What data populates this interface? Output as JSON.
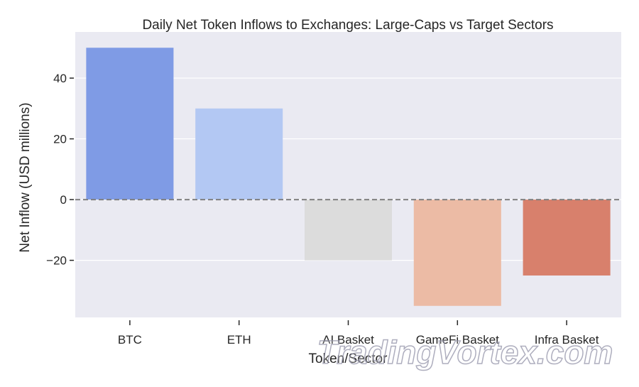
{
  "chart_data": {
    "type": "bar",
    "title": "Daily Net Token Inflows to Exchanges: Large-Caps vs Target Sectors",
    "xlabel": "Token/Sector",
    "ylabel": "Net Inflow (USD millions)",
    "categories": [
      "BTC",
      "ETH",
      "AI Basket",
      "GameFi Basket",
      "Infra Basket"
    ],
    "values": [
      50,
      30,
      -20,
      -35,
      -25
    ],
    "colors": [
      "#7f9be5",
      "#b3c8f3",
      "#dcdcdc",
      "#ecbba5",
      "#d8806c"
    ],
    "ylim": [
      -38.8,
      55.2
    ],
    "yticks": [
      -20,
      0,
      20,
      40
    ],
    "grid": true,
    "background": "#eaeaf2",
    "reference_line": {
      "y": 0,
      "style": "dashed",
      "color": "#808080"
    }
  },
  "watermark": "TradingVortex.com"
}
